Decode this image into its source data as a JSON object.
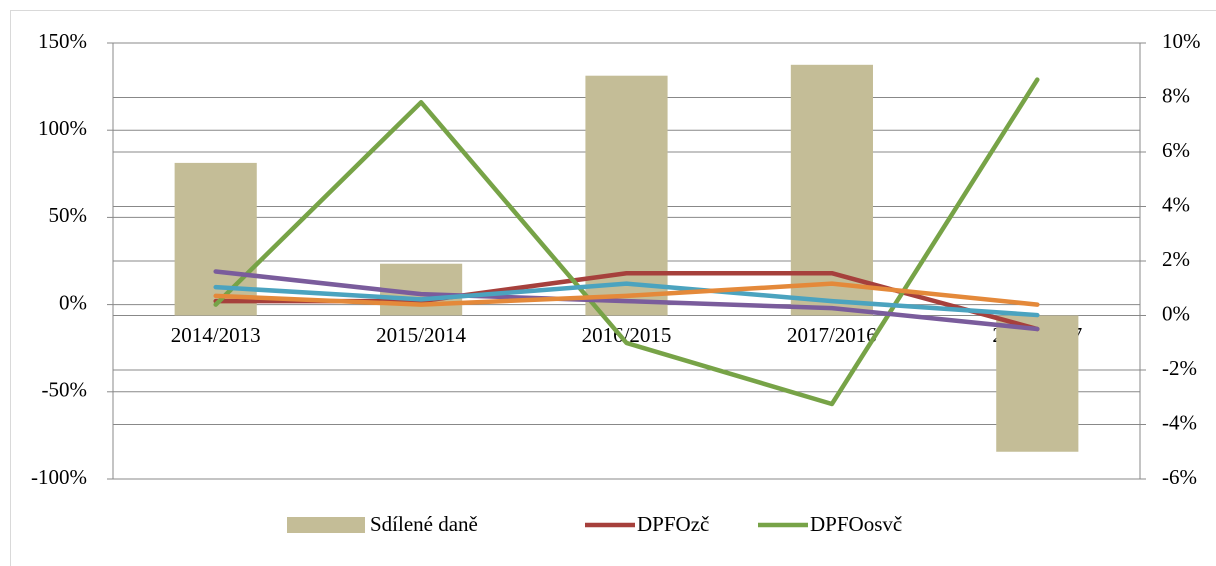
{
  "chart_data": {
    "type": "bar-line",
    "categories": [
      "2014/2013",
      "2015/2014",
      "2016/2015",
      "2017/2016",
      "2018/2017"
    ],
    "series": [
      {
        "name": "Sdílené daně",
        "type": "bar",
        "axis": "y2",
        "color": "#c4bd97",
        "values": [
          5.6,
          1.9,
          8.8,
          9.2,
          -5.0
        ]
      },
      {
        "name": "DPFOzč",
        "type": "line",
        "color": "#a6403c",
        "values": [
          2,
          2,
          18,
          18,
          -14
        ]
      },
      {
        "name": "DPFOosvč",
        "type": "line",
        "color": "#77a347",
        "values": [
          0,
          116,
          -22,
          -57,
          129
        ]
      },
      {
        "type": "line",
        "color": "#7a5c9c",
        "values": [
          19,
          6,
          2,
          -2,
          -14
        ]
      },
      {
        "type": "line",
        "color": "#4ba3bf",
        "values": [
          10,
          3,
          12,
          2,
          -6
        ]
      },
      {
        "type": "line",
        "color": "#e4893a",
        "values": [
          5,
          0,
          5,
          12,
          0
        ]
      }
    ],
    "ylim": [
      -100,
      150
    ],
    "yticks": [
      {
        "value": -100,
        "label": "-100%"
      },
      {
        "value": -50,
        "label": "-50%"
      },
      {
        "value": 0,
        "label": "0%"
      },
      {
        "value": 50,
        "label": "50%"
      },
      {
        "value": 100,
        "label": "100%"
      },
      {
        "value": 150,
        "label": "150%"
      }
    ],
    "y2lim": [
      -6,
      10
    ],
    "y2ticks": [
      {
        "value": -6,
        "label": "-6%"
      },
      {
        "value": -4,
        "label": "-4%"
      },
      {
        "value": -2,
        "label": "-2%"
      },
      {
        "value": 0,
        "label": "0%"
      },
      {
        "value": 2,
        "label": "2%"
      },
      {
        "value": 4,
        "label": "4%"
      },
      {
        "value": 6,
        "label": "6%"
      },
      {
        "value": 8,
        "label": "8%"
      },
      {
        "value": 10,
        "label": "10%"
      }
    ],
    "grid": true,
    "legend": "bottom"
  }
}
